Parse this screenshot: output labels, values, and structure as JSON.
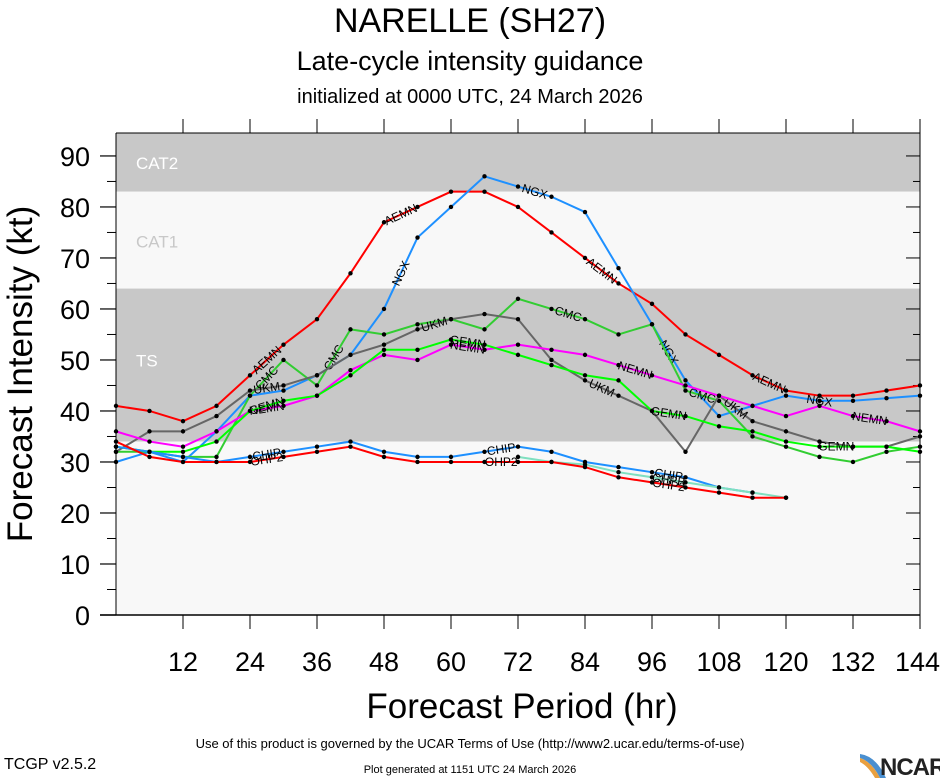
{
  "header": {
    "title": "NARELLE (SH27)",
    "subtitle": "Late-cycle intensity guidance",
    "init_line": "initialized at 0000 UTC, 24 March 2026"
  },
  "footer": {
    "terms": "Use of this product is governed by the UCAR Terms of Use (http://www2.ucar.edu/terms-of-use)",
    "version": "TCGP v2.5.2",
    "generated": "Plot generated at 1151 UTC   24 March 2026",
    "logo": "NCAR"
  },
  "chart_data": {
    "type": "line",
    "title": "NARELLE (SH27)",
    "xlabel": "Forecast Period (hr)",
    "ylabel": "Forecast Intensity (kt)",
    "xlim": [
      0,
      144
    ],
    "ylim": [
      0,
      94.5
    ],
    "xticks": [
      12,
      24,
      36,
      48,
      60,
      72,
      84,
      96,
      108,
      120,
      132,
      144
    ],
    "yticks": [
      0,
      10,
      20,
      30,
      40,
      50,
      60,
      70,
      80,
      90
    ],
    "bands": [
      {
        "label": "CAT2",
        "from": 83,
        "to": 94.5,
        "color": "#c8c8c8",
        "text_color": "#ffffff"
      },
      {
        "label": "CAT1",
        "from": 64,
        "to": 83,
        "color": "#f8f8f8",
        "text_color": "#c8c8c8"
      },
      {
        "label": "TS",
        "from": 34,
        "to": 64,
        "color": "#c8c8c8",
        "text_color": "#ffffff"
      },
      {
        "label": "",
        "from": 0,
        "to": 34,
        "color": "#f8f8f8",
        "text_color": "#c8c8c8"
      }
    ],
    "x": [
      0,
      6,
      12,
      18,
      24,
      30,
      36,
      42,
      48,
      54,
      60,
      66,
      72,
      78,
      84,
      90,
      96,
      102,
      108,
      114,
      120,
      126,
      132,
      138,
      144
    ],
    "series": [
      {
        "name": "AEMN",
        "color": "#ff0000",
        "labels_at": [
          27,
          51,
          87,
          117
        ],
        "values": [
          41,
          40,
          38,
          41,
          47,
          53,
          58,
          67,
          77,
          80,
          83,
          83,
          80,
          75,
          70,
          65,
          61,
          55,
          51,
          47,
          44,
          43,
          43,
          44,
          45
        ]
      },
      {
        "name": "NGX",
        "color": "#1e90ff",
        "labels_at": [
          51,
          75,
          99,
          126
        ],
        "values": [
          30,
          32,
          30,
          36,
          43,
          44,
          47,
          51,
          60,
          74,
          80,
          86,
          84,
          82,
          79,
          68,
          57,
          46,
          39,
          41,
          43,
          42,
          42,
          42.5,
          43
        ]
      },
      {
        "name": "CMC",
        "color": "#32cd32",
        "labels_at": [
          27,
          39,
          81,
          105
        ],
        "values": [
          32,
          32,
          31,
          31,
          43,
          50,
          45,
          56,
          55,
          57,
          58,
          56,
          62,
          60,
          58,
          55,
          57,
          44,
          42,
          35,
          33,
          31,
          30,
          32,
          33
        ]
      },
      {
        "name": "UKM",
        "color": "#666666",
        "labels_at": [
          27,
          57,
          87,
          111
        ],
        "values": [
          32,
          36,
          36,
          39,
          44,
          45,
          47,
          51,
          53,
          56,
          58,
          59,
          58,
          50,
          46,
          43,
          40,
          32,
          43,
          38,
          36,
          34,
          33,
          33,
          35
        ]
      },
      {
        "name": "NEMN",
        "color": "#ff00ff",
        "labels_at": [
          27,
          63,
          93,
          135
        ],
        "values": [
          36,
          34,
          33,
          36,
          40,
          41,
          43,
          48,
          51,
          50,
          53,
          52,
          53,
          52,
          51,
          49,
          47,
          45,
          43,
          41,
          39,
          41,
          39,
          38,
          36
        ]
      },
      {
        "name": "GEMN",
        "color": "#00ff00",
        "labels_at": [
          27,
          63,
          99,
          129
        ],
        "values": [
          33,
          32,
          32,
          34,
          40,
          42,
          43,
          47,
          52,
          52,
          54,
          53,
          51,
          49,
          47,
          46,
          40,
          39,
          37,
          36,
          34,
          33,
          33,
          33,
          32
        ]
      },
      {
        "name": "CHIP",
        "color": "#1e90ff",
        "labels_at": [
          27,
          69,
          99
        ],
        "values": [
          33,
          32,
          31,
          30,
          31,
          32,
          33,
          34,
          32,
          31,
          31,
          32,
          33,
          32,
          30,
          29,
          28,
          27,
          25,
          24,
          null,
          null,
          null,
          null,
          null
        ]
      },
      {
        "name": "CHPB",
        "color": "#7fe0c0",
        "labels_at": [
          69,
          99
        ],
        "values": [
          null,
          null,
          null,
          null,
          null,
          null,
          null,
          null,
          null,
          null,
          null,
          null,
          31,
          30,
          29.5,
          28,
          27,
          26,
          25,
          24,
          23,
          null,
          null,
          null,
          null
        ]
      },
      {
        "name": "OHP2",
        "color": "#ff0000",
        "labels_at": [
          27,
          69,
          99
        ],
        "values": [
          34,
          31,
          30,
          30,
          30,
          31,
          32,
          33,
          31,
          30,
          30,
          30,
          30,
          30,
          29,
          27,
          26,
          25,
          24,
          23,
          23,
          null,
          null,
          null,
          null
        ]
      }
    ]
  }
}
